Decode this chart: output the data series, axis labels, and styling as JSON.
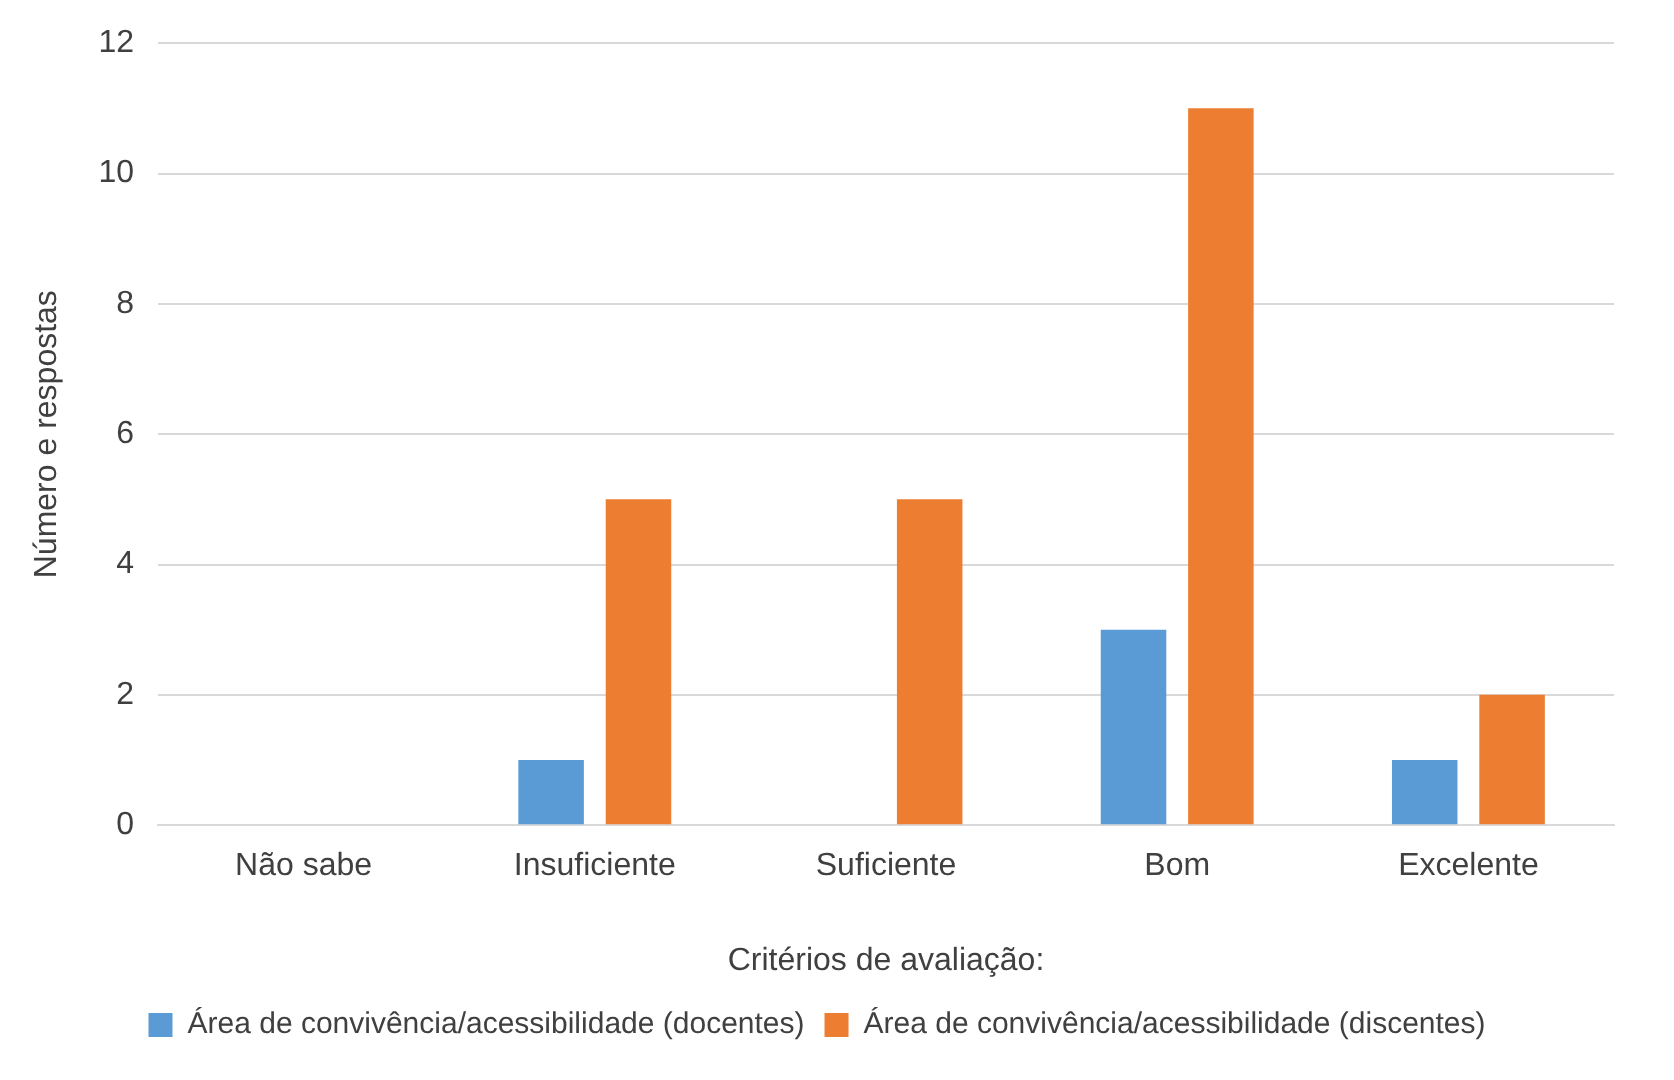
{
  "chart_data": {
    "type": "bar",
    "xlabel": "Critérios de avaliação:",
    "ylabel": "Número e respostas",
    "categories": [
      "Não sabe",
      "Insuficiente",
      "Suficiente",
      "Bom",
      "Excelente"
    ],
    "series": [
      {
        "name": "Área de convivência/acessibilidade (docentes)",
        "color": "#5b9bd5",
        "values": [
          0,
          1,
          0,
          3,
          1
        ]
      },
      {
        "name": "Área de convivência/acessibilidade (discentes)",
        "color": "#ed7d31",
        "values": [
          0,
          5,
          5,
          11,
          2
        ]
      }
    ],
    "ylim": [
      0,
      12
    ],
    "yticks": [
      0,
      2,
      4,
      6,
      8,
      10,
      12
    ],
    "grid": "y",
    "legend": "bottom"
  }
}
